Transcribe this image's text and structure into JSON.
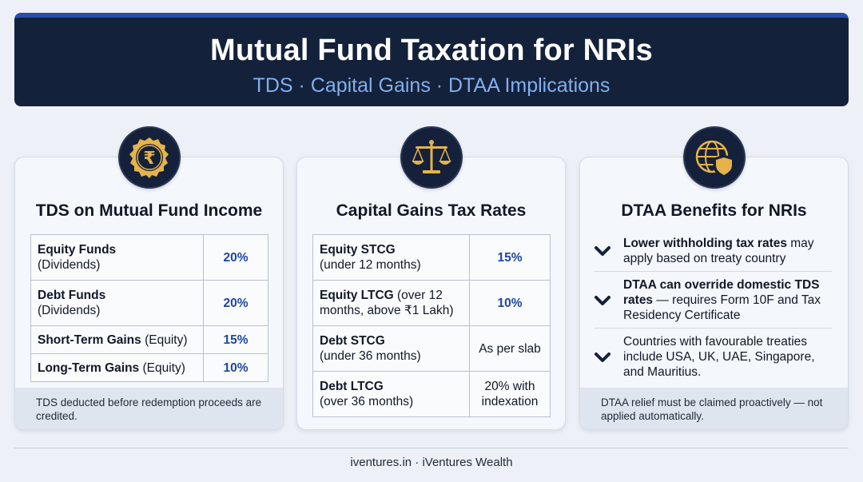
{
  "header": {
    "title": "Mutual Fund Taxation for NRIs",
    "subtitle": "TDS · Capital Gains · DTAA Implications"
  },
  "colors": {
    "navy": "#14213a",
    "accent": "#7fb0ef",
    "value_blue": "#1e46a1",
    "gold": "#e4b34a"
  },
  "cards": {
    "tds": {
      "icon": "rupee-badge-icon",
      "title": "TDS on Mutual Fund Income",
      "rows": [
        {
          "bold": "Equity Funds",
          "rest": "(Dividends)",
          "value": "20%"
        },
        {
          "bold": "Debt Funds",
          "rest": "(Dividends)",
          "value": "20%"
        },
        {
          "bold": "Short-Term Gains",
          "rest": " (Equity)",
          "value": "15%"
        },
        {
          "bold": "Long-Term Gains",
          "rest": " (Equity)",
          "value": "10%"
        }
      ],
      "note": "TDS deducted before redemption proceeds are credited."
    },
    "cgt": {
      "icon": "balance-scale-icon",
      "title": "Capital Gains Tax Rates",
      "rows": [
        {
          "bold": "Equity STCG",
          "rest": "(under 12 months)",
          "value": "15%"
        },
        {
          "bold": "Equity LTCG",
          "rest": " (over 12 months, above ₹1 Lakh)",
          "value": "10%"
        },
        {
          "bold": "Debt STCG",
          "rest": "(under 36 months)",
          "value": "As per slab"
        },
        {
          "bold": "Debt LTCG",
          "rest": "(over 36 months)",
          "value": "20% with indexation"
        }
      ]
    },
    "dtaa": {
      "icon": "globe-shield-icon",
      "title": "DTAA Benefits for NRIs",
      "bullets": [
        {
          "bold": "Lower withholding tax rates",
          "rest": " may apply based on treaty country"
        },
        {
          "bold": "DTAA can override domestic TDS rates",
          "rest": " — requires Form 10F and Tax Residency Certificate"
        },
        {
          "bold": "",
          "rest": "Countries with favourable treaties include USA, UK, UAE, Singapore, and Mauritius."
        }
      ],
      "note": "DTAA relief must be claimed proactively — not applied automatically."
    }
  },
  "footer": "iventures.in · iVentures Wealth"
}
